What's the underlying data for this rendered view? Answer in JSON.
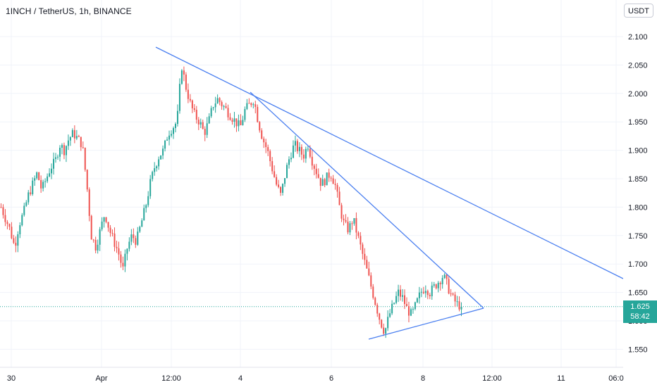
{
  "header": {
    "title": "1INCH / TetherUS, 1h, BINANCE",
    "currency": "USDT"
  },
  "price_tag": {
    "price": "1.625",
    "countdown": "58:42"
  },
  "colors": {
    "up": "#26a69a",
    "down": "#ef5350",
    "trendline": "#4a7ff0",
    "price_line": "#26a69a"
  },
  "chart_data": {
    "type": "candlestick",
    "symbol": "1INCH / TetherUS",
    "interval": "1h",
    "exchange": "BINANCE",
    "ylim": [
      1.52,
      2.13
    ],
    "y_ticks": [
      "2.100",
      "2.050",
      "2.000",
      "1.950",
      "1.900",
      "1.850",
      "1.800",
      "1.750",
      "1.700",
      "1.650",
      "1.600",
      "1.550"
    ],
    "x_ticks": [
      "30",
      "Apr",
      "12:00",
      "4",
      "6",
      "8",
      "12:00",
      "11",
      "06:0"
    ],
    "current_price": 1.625,
    "trendlines": [
      {
        "points": [
          [
            0.0,
            2.082
          ],
          [
            1.0,
            1.675
          ]
        ]
      },
      {
        "points": [
          [
            0.0,
            1.995
          ],
          [
            1.0,
            1.62
          ]
        ]
      },
      {
        "points": [
          [
            0.0,
            1.565
          ],
          [
            1.0,
            1.62
          ]
        ]
      }
    ],
    "price_path": [
      1.8,
      1.78,
      1.76,
      1.73,
      1.77,
      1.79,
      1.82,
      1.84,
      1.86,
      1.83,
      1.85,
      1.87,
      1.88,
      1.91,
      1.9,
      1.92,
      1.93,
      1.92,
      1.91,
      1.84,
      1.75,
      1.73,
      1.76,
      1.79,
      1.76,
      1.74,
      1.72,
      1.69,
      1.73,
      1.75,
      1.74,
      1.77,
      1.8,
      1.84,
      1.87,
      1.89,
      1.9,
      1.93,
      1.94,
      1.95,
      2.05,
      2.01,
      1.98,
      1.96,
      1.95,
      1.93,
      1.95,
      1.98,
      1.99,
      1.98,
      1.97,
      1.96,
      1.95,
      1.94,
      1.97,
      1.98,
      1.99,
      1.95,
      1.92,
      1.9,
      1.87,
      1.84,
      1.82,
      1.86,
      1.89,
      1.91,
      1.9,
      1.89,
      1.91,
      1.88,
      1.86,
      1.84,
      1.85,
      1.86,
      1.84,
      1.8,
      1.77,
      1.76,
      1.78,
      1.75,
      1.72,
      1.69,
      1.66,
      1.63,
      1.6,
      1.58,
      1.61,
      1.63,
      1.65,
      1.64,
      1.62,
      1.61,
      1.63,
      1.65,
      1.66,
      1.65,
      1.66,
      1.67,
      1.68,
      1.66,
      1.64,
      1.63,
      1.625
    ]
  }
}
